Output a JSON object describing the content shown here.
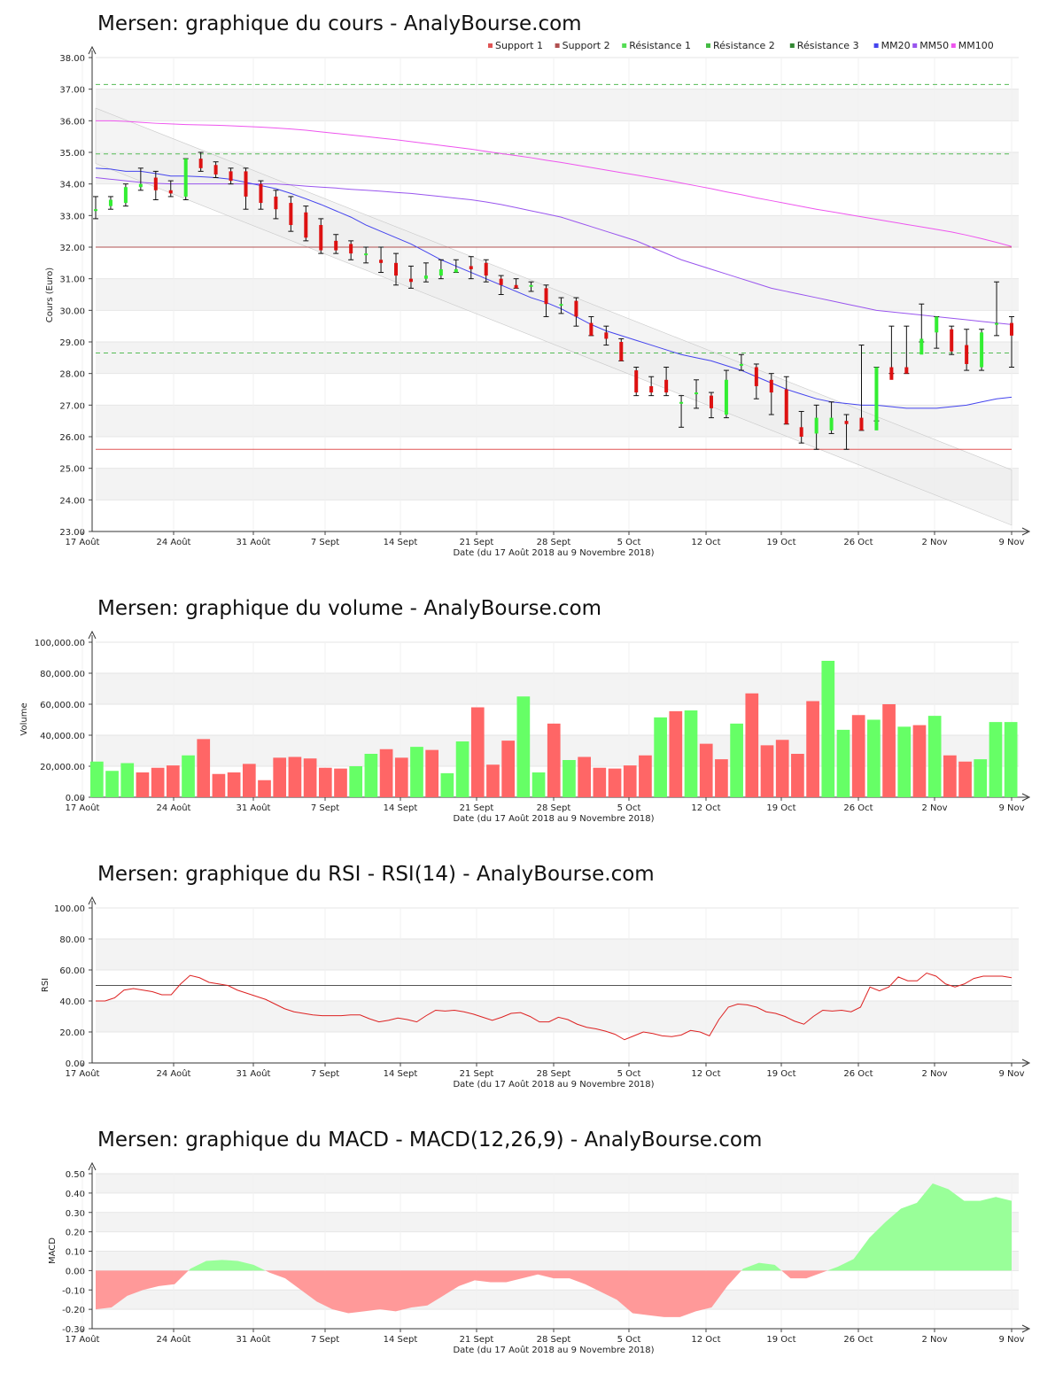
{
  "chart_data": [
    {
      "type": "candlestick",
      "title": "Mersen: graphique du cours - AnalyBourse.com",
      "xlabel": "Date (du 17 Août 2018 au 9 Novembre 2018)",
      "ylabel": "Cours (Euro)",
      "ylim": [
        23,
        38
      ],
      "grid": true,
      "legend_position": "top",
      "x_ticks": [
        "17 Août",
        "24 Août",
        "31 Août",
        "7 Sept",
        "14 Sept",
        "21 Sept",
        "28 Sept",
        "5 Oct",
        "12 Oct",
        "19 Oct",
        "26 Oct",
        "2 Nov",
        "9 Nov"
      ],
      "y_ticks": [
        "23.00",
        "24.00",
        "25.00",
        "26.00",
        "27.00",
        "28.00",
        "29.00",
        "30.00",
        "31.00",
        "32.00",
        "33.00",
        "34.00",
        "35.00",
        "36.00",
        "37.00",
        "38.00"
      ],
      "legend": [
        {
          "name": "Support 1",
          "color": "#e05555"
        },
        {
          "name": "Support 2",
          "color": "#b05050"
        },
        {
          "name": "Résistance 1",
          "color": "#55dd55"
        },
        {
          "name": "Résistance 2",
          "color": "#44bb44"
        },
        {
          "name": "Résistance 3",
          "color": "#338833"
        },
        {
          "name": "MM20",
          "color": "#4444ee"
        },
        {
          "name": "MM50",
          "color": "#9955ee"
        },
        {
          "name": "MM100",
          "color": "#ee55ee"
        }
      ],
      "levels": {
        "support1": 25.6,
        "support2": 32.0,
        "resistance1": 28.65,
        "resistance2": 34.95,
        "resistance3": 37.15
      },
      "candles": {
        "open": [
          33.2,
          33.3,
          33.4,
          33.9,
          34.2,
          33.8,
          33.6,
          34.8,
          34.6,
          34.4,
          34.4,
          34.0,
          33.6,
          33.4,
          33.1,
          32.7,
          32.2,
          32.1,
          31.8,
          31.6,
          31.5,
          31.0,
          31.0,
          31.1,
          31.2,
          31.4,
          31.5,
          31.0,
          30.8,
          30.8,
          30.7,
          30.2,
          30.3,
          29.6,
          29.3,
          29.0,
          28.1,
          27.6,
          27.8,
          27.1,
          27.4,
          27.3,
          26.7,
          28.3,
          28.2,
          27.8,
          27.5,
          26.3,
          26.1,
          26.2,
          26.5,
          26.6,
          26.2,
          28.2,
          28.2,
          28.6,
          29.3,
          29.4,
          28.9,
          28.2,
          29.6,
          29.6
        ],
        "close": [
          33.2,
          33.5,
          33.9,
          34.0,
          33.8,
          33.7,
          34.8,
          34.5,
          34.3,
          34.1,
          33.6,
          33.4,
          33.2,
          32.7,
          32.3,
          31.9,
          31.9,
          31.8,
          31.8,
          31.5,
          31.1,
          30.9,
          31.1,
          31.3,
          31.3,
          31.3,
          31.1,
          30.8,
          30.7,
          30.8,
          30.2,
          30.2,
          29.8,
          29.2,
          29.1,
          28.4,
          27.4,
          27.4,
          27.4,
          27.1,
          27.4,
          26.9,
          27.8,
          28.3,
          27.6,
          27.4,
          26.4,
          26.0,
          26.6,
          26.6,
          26.4,
          26.2,
          28.2,
          27.8,
          28.0,
          29.1,
          29.8,
          28.7,
          28.3,
          29.3,
          29.6,
          29.2
        ],
        "high": [
          33.6,
          33.6,
          34.0,
          34.5,
          34.4,
          34.1,
          34.8,
          35.0,
          34.7,
          34.5,
          34.5,
          34.1,
          33.8,
          33.6,
          33.3,
          32.9,
          32.4,
          32.2,
          32.0,
          32.0,
          31.8,
          31.4,
          31.5,
          31.6,
          31.6,
          31.7,
          31.6,
          31.1,
          31.0,
          30.9,
          30.8,
          30.4,
          30.4,
          29.8,
          29.5,
          29.1,
          28.2,
          27.9,
          28.2,
          27.3,
          27.8,
          27.4,
          28.1,
          28.6,
          28.3,
          28.0,
          27.9,
          26.8,
          27.0,
          27.1,
          26.7,
          28.9,
          28.2,
          29.5,
          29.5,
          30.2,
          29.8,
          29.5,
          29.4,
          29.4,
          30.9,
          29.8
        ],
        "low": [
          32.9,
          33.2,
          33.3,
          33.8,
          33.5,
          33.6,
          33.5,
          34.4,
          34.2,
          34.0,
          33.2,
          33.2,
          32.9,
          32.5,
          32.2,
          31.8,
          31.8,
          31.6,
          31.5,
          31.2,
          30.8,
          30.7,
          30.9,
          31.0,
          31.2,
          31.0,
          30.9,
          30.5,
          30.7,
          30.6,
          29.8,
          29.9,
          29.5,
          29.2,
          28.9,
          28.4,
          27.3,
          27.3,
          27.3,
          26.3,
          26.9,
          26.6,
          26.6,
          28.1,
          27.2,
          26.7,
          26.4,
          25.8,
          25.6,
          26.1,
          25.6,
          26.2,
          26.5,
          28.0,
          28.0,
          29.0,
          28.8,
          28.6,
          28.1,
          28.1,
          29.2,
          28.2
        ]
      },
      "mm20": [
        34.5,
        34.47,
        34.4,
        34.4,
        34.33,
        34.25,
        34.25,
        34.23,
        34.2,
        34.15,
        34.05,
        33.95,
        33.85,
        33.7,
        33.53,
        33.35,
        33.15,
        32.95,
        32.7,
        32.5,
        32.3,
        32.1,
        31.85,
        31.6,
        31.4,
        31.2,
        31.0,
        30.8,
        30.6,
        30.4,
        30.25,
        30.05,
        29.8,
        29.55,
        29.35,
        29.2,
        29.05,
        28.9,
        28.75,
        28.6,
        28.5,
        28.4,
        28.25,
        28.1,
        27.9,
        27.7,
        27.5,
        27.35,
        27.2,
        27.1,
        27.05,
        27.0,
        27.0,
        26.95,
        26.9,
        26.9,
        26.9,
        26.95,
        27.0,
        27.1,
        27.2,
        27.25
      ],
      "mm50": [
        34.2,
        34.15,
        34.1,
        34.05,
        34.02,
        34.0,
        34.0,
        34.0,
        34.0,
        34.0,
        34.0,
        34.0,
        34.0,
        33.97,
        33.93,
        33.9,
        33.87,
        33.83,
        33.8,
        33.77,
        33.73,
        33.7,
        33.65,
        33.6,
        33.55,
        33.5,
        33.43,
        33.35,
        33.25,
        33.15,
        33.05,
        32.95,
        32.8,
        32.65,
        32.5,
        32.35,
        32.2,
        32.0,
        31.8,
        31.6,
        31.45,
        31.3,
        31.15,
        31.0,
        30.85,
        30.7,
        30.6,
        30.5,
        30.4,
        30.3,
        30.2,
        30.1,
        30.0,
        29.95,
        29.9,
        29.85,
        29.8,
        29.75,
        29.7,
        29.65,
        29.6,
        29.55
      ],
      "mm100": [
        36.0,
        36.0,
        35.98,
        35.95,
        35.92,
        35.9,
        35.88,
        35.87,
        35.86,
        35.84,
        35.82,
        35.8,
        35.77,
        35.74,
        35.7,
        35.65,
        35.6,
        35.55,
        35.5,
        35.45,
        35.4,
        35.34,
        35.28,
        35.22,
        35.16,
        35.1,
        35.03,
        34.96,
        34.9,
        34.83,
        34.75,
        34.68,
        34.6,
        34.52,
        34.44,
        34.36,
        34.28,
        34.2,
        34.12,
        34.03,
        33.94,
        33.85,
        33.75,
        33.66,
        33.56,
        33.47,
        33.38,
        33.29,
        33.2,
        33.12,
        33.04,
        32.96,
        32.88,
        32.8,
        32.72,
        32.64,
        32.56,
        32.48,
        32.38,
        32.27,
        32.15,
        32.02
      ]
    },
    {
      "type": "bar",
      "title": "Mersen: graphique du volume - AnalyBourse.com",
      "xlabel": "Date (du 17 Août 2018 au 9 Novembre 2018)",
      "ylabel": "Volume",
      "ylim": [
        0,
        100000
      ],
      "grid": true,
      "x_ticks": [
        "17 Août",
        "24 Août",
        "31 Août",
        "7 Sept",
        "14 Sept",
        "21 Sept",
        "28 Sept",
        "5 Oct",
        "12 Oct",
        "19 Oct",
        "26 Oct",
        "2 Nov",
        "9 Nov"
      ],
      "y_ticks": [
        "0.00",
        "20,000.00",
        "40,000.00",
        "60,000.00",
        "80,000.00",
        "100,000.00"
      ],
      "values": [
        23000,
        17000,
        22000,
        16000,
        19000,
        20500,
        27000,
        37500,
        15000,
        16000,
        21500,
        11000,
        25500,
        26000,
        25000,
        19000,
        18500,
        20000,
        28000,
        31000,
        25500,
        32500,
        30500,
        15500,
        36000,
        58000,
        21000,
        36500,
        65000,
        16000,
        47500,
        24000,
        26000,
        19000,
        18500,
        20500,
        27000,
        51500,
        55500,
        56000,
        34500,
        24500,
        47500,
        67000,
        33500,
        37000,
        28000,
        62000,
        88000,
        43500,
        53000,
        50000,
        60000,
        45500,
        46500,
        52500,
        27000,
        23000,
        24500,
        48500,
        48500
      ],
      "up": [
        true,
        true,
        true,
        false,
        false,
        false,
        true,
        false,
        false,
        false,
        false,
        false,
        false,
        false,
        false,
        false,
        false,
        true,
        true,
        false,
        false,
        true,
        false,
        true,
        true,
        false,
        false,
        false,
        true,
        true,
        false,
        true,
        false,
        false,
        false,
        false,
        false,
        true,
        false,
        true,
        false,
        false,
        true,
        false,
        false,
        false,
        false,
        false,
        true,
        true,
        false,
        true,
        false,
        true,
        false,
        true,
        false,
        false,
        true,
        true,
        true
      ]
    },
    {
      "type": "line",
      "title": "Mersen: graphique du RSI - RSI(14) - AnalyBourse.com",
      "xlabel": "Date (du 17 Août 2018 au 9 Novembre 2018)",
      "ylabel": "RSI",
      "ylim": [
        0,
        100
      ],
      "grid": true,
      "reference_line": 50,
      "x_ticks": [
        "17 Août",
        "24 Août",
        "31 Août",
        "7 Sept",
        "14 Sept",
        "21 Sept",
        "28 Sept",
        "5 Oct",
        "12 Oct",
        "19 Oct",
        "26 Oct",
        "2 Nov",
        "9 Nov"
      ],
      "y_ticks": [
        "0.00",
        "20.00",
        "40.00",
        "60.00",
        "80.00",
        "100.00"
      ],
      "values": [
        40,
        40,
        42,
        47,
        48,
        47,
        46,
        44,
        44,
        51,
        56.5,
        55,
        52,
        51,
        50,
        47,
        45,
        43,
        41,
        38,
        35,
        33,
        32,
        31,
        30.5,
        30.5,
        30.5,
        31,
        31,
        28.5,
        26.5,
        27.5,
        29,
        28,
        26.5,
        30.5,
        34,
        33.5,
        34,
        33,
        31.5,
        29.5,
        27.5,
        29.5,
        32,
        32.5,
        30,
        26.5,
        26.5,
        29.5,
        28,
        25,
        23,
        22,
        20.5,
        18.5,
        15,
        17.5,
        20,
        19,
        17.5,
        17,
        18,
        21,
        20,
        17.5,
        28,
        36,
        38,
        37.5,
        36,
        33,
        32,
        30,
        27,
        25,
        30,
        34,
        33.5,
        34,
        33,
        36,
        49,
        46.5,
        49,
        55.5,
        53,
        53,
        58,
        56,
        51,
        49,
        51,
        54.5,
        56,
        56,
        56,
        55
      ]
    },
    {
      "type": "area",
      "title": "Mersen: graphique du MACD - MACD(12,26,9) - AnalyBourse.com",
      "xlabel": "Date (du 17 Août 2018 au 9 Novembre 2018)",
      "ylabel": "MACD",
      "ylim": [
        -0.3,
        0.5
      ],
      "grid": true,
      "x_ticks": [
        "17 Août",
        "24 Août",
        "31 Août",
        "7 Sept",
        "14 Sept",
        "21 Sept",
        "28 Sept",
        "5 Oct",
        "12 Oct",
        "19 Oct",
        "26 Oct",
        "2 Nov",
        "9 Nov"
      ],
      "y_ticks": [
        "-0.30",
        "-0.20",
        "-0.10",
        "0.00",
        "0.10",
        "0.20",
        "0.30",
        "0.40",
        "0.50"
      ],
      "values": [
        -0.2,
        -0.19,
        -0.13,
        -0.1,
        -0.08,
        -0.07,
        0.01,
        0.05,
        0.055,
        0.05,
        0.03,
        -0.01,
        -0.04,
        -0.1,
        -0.16,
        -0.2,
        -0.22,
        -0.21,
        -0.2,
        -0.21,
        -0.19,
        -0.18,
        -0.13,
        -0.08,
        -0.05,
        -0.06,
        -0.06,
        -0.04,
        -0.02,
        -0.04,
        -0.04,
        -0.07,
        -0.11,
        -0.15,
        -0.22,
        -0.23,
        -0.24,
        -0.24,
        -0.21,
        -0.19,
        -0.08,
        0.01,
        0.04,
        0.03,
        -0.04,
        -0.04,
        -0.01,
        0.02,
        0.06,
        0.17,
        0.25,
        0.32,
        0.35,
        0.45,
        0.42,
        0.36,
        0.36,
        0.38,
        0.36
      ]
    }
  ]
}
